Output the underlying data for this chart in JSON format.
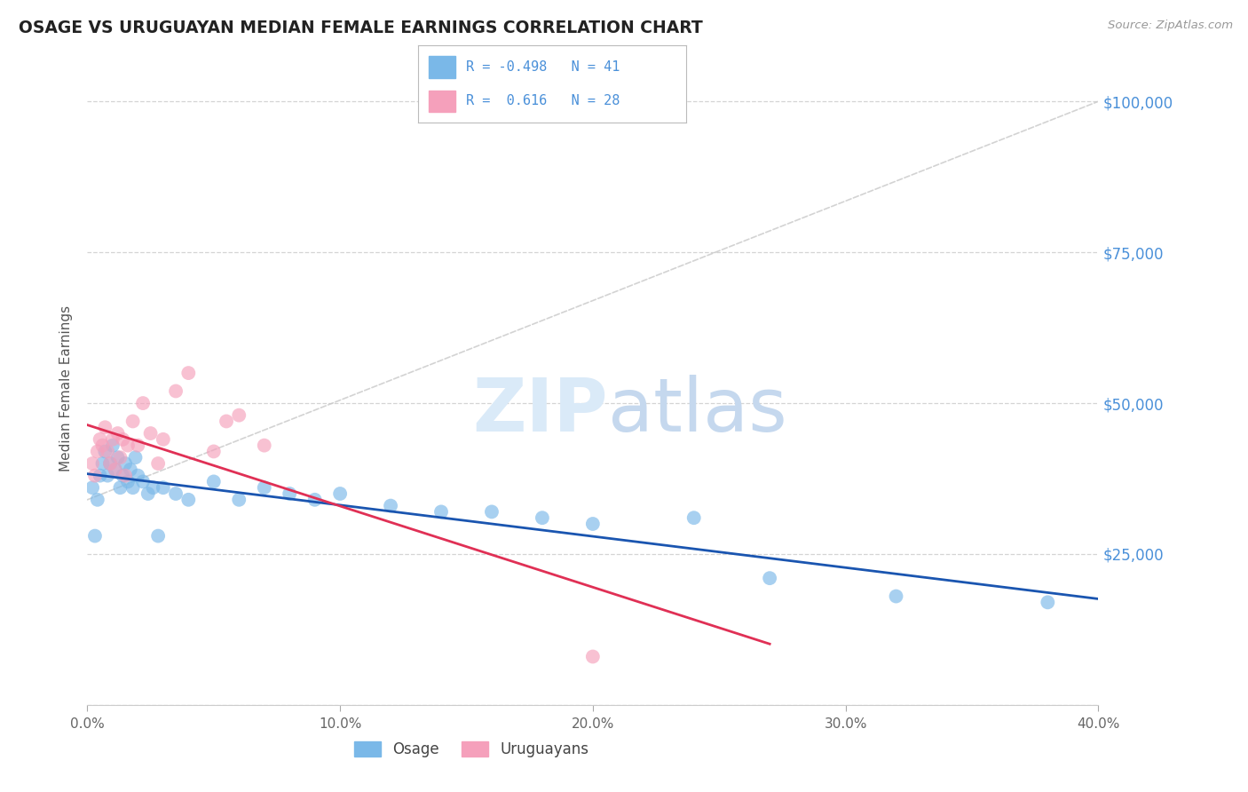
{
  "title": "OSAGE VS URUGUAYAN MEDIAN FEMALE EARNINGS CORRELATION CHART",
  "source": "Source: ZipAtlas.com",
  "ylabel": "Median Female Earnings",
  "xlim": [
    0.0,
    0.4
  ],
  "ylim": [
    0,
    105000
  ],
  "yticks": [
    0,
    25000,
    50000,
    75000,
    100000
  ],
  "ytick_labels": [
    "",
    "$25,000",
    "$50,000",
    "$75,000",
    "$100,000"
  ],
  "xtick_labels": [
    "0.0%",
    "10.0%",
    "20.0%",
    "30.0%",
    "40.0%"
  ],
  "xticks": [
    0.0,
    0.1,
    0.2,
    0.3,
    0.4
  ],
  "blue_color": "#7ab8e8",
  "pink_color": "#f5a0bb",
  "trend_blue": "#1a55b0",
  "trend_pink": "#e03055",
  "ref_line_color": "#c8c8c8",
  "background_color": "#ffffff",
  "grid_color": "#d0d0d0",
  "title_color": "#222222",
  "right_label_color": "#4a90d9",
  "tick_label_color": "#666666",
  "osage_x": [
    0.002,
    0.003,
    0.004,
    0.005,
    0.006,
    0.007,
    0.008,
    0.009,
    0.01,
    0.011,
    0.012,
    0.013,
    0.014,
    0.015,
    0.016,
    0.017,
    0.018,
    0.019,
    0.02,
    0.022,
    0.024,
    0.026,
    0.028,
    0.03,
    0.035,
    0.04,
    0.05,
    0.06,
    0.07,
    0.08,
    0.09,
    0.1,
    0.12,
    0.14,
    0.16,
    0.18,
    0.2,
    0.24,
    0.27,
    0.32,
    0.38
  ],
  "osage_y": [
    36000,
    28000,
    34000,
    38000,
    40000,
    42000,
    38000,
    40000,
    43000,
    39000,
    41000,
    36000,
    38000,
    40000,
    37000,
    39000,
    36000,
    41000,
    38000,
    37000,
    35000,
    36000,
    28000,
    36000,
    35000,
    34000,
    37000,
    34000,
    36000,
    35000,
    34000,
    35000,
    33000,
    32000,
    32000,
    31000,
    30000,
    31000,
    21000,
    18000,
    17000
  ],
  "uruguayan_x": [
    0.002,
    0.003,
    0.004,
    0.005,
    0.006,
    0.007,
    0.008,
    0.009,
    0.01,
    0.011,
    0.012,
    0.013,
    0.014,
    0.015,
    0.016,
    0.018,
    0.02,
    0.022,
    0.025,
    0.028,
    0.03,
    0.035,
    0.04,
    0.05,
    0.055,
    0.06,
    0.07,
    0.2
  ],
  "uruguayan_y": [
    40000,
    38000,
    42000,
    44000,
    43000,
    46000,
    42000,
    40000,
    44000,
    39000,
    45000,
    41000,
    44000,
    38000,
    43000,
    47000,
    43000,
    50000,
    45000,
    40000,
    44000,
    52000,
    55000,
    42000,
    47000,
    48000,
    43000,
    8000
  ]
}
